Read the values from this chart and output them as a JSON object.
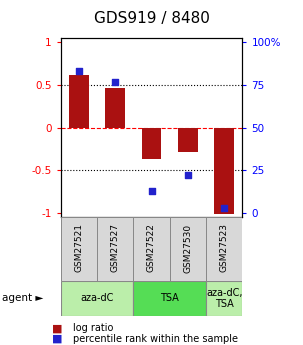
{
  "title": "GDS919 / 8480",
  "samples": [
    "GSM27521",
    "GSM27527",
    "GSM27522",
    "GSM27530",
    "GSM27523"
  ],
  "log_ratio": [
    0.62,
    0.46,
    -0.37,
    -0.28,
    -1.01
  ],
  "percentile": [
    83,
    77,
    13,
    22,
    3
  ],
  "bar_color": "#aa1111",
  "dot_color": "#2222cc",
  "agent_groups": [
    {
      "label": "aza-dC",
      "cols": [
        0,
        1
      ],
      "color": "#bbeeaa"
    },
    {
      "label": "TSA",
      "cols": [
        2,
        3
      ],
      "color": "#55dd55"
    },
    {
      "label": "aza-dC,\nTSA",
      "cols": [
        4,
        4
      ],
      "color": "#bbeeaa"
    }
  ],
  "ylim": [
    -1.05,
    1.05
  ],
  "y_left_ticks": [
    -1.0,
    -0.5,
    0.0,
    0.5,
    1.0
  ],
  "ytick_labels_left": [
    "-1",
    "-0.5",
    "0",
    "0.5",
    "1"
  ],
  "y_right_ticks": [
    0,
    25,
    50,
    75,
    100
  ],
  "ytick_labels_right": [
    "0",
    "25",
    "50",
    "75",
    "100%"
  ],
  "hlines": [
    -0.5,
    0.0,
    0.5
  ],
  "hline_styles": [
    "dotted",
    "dashed",
    "dotted"
  ],
  "bar_width": 0.55,
  "background_color": "#ffffff"
}
